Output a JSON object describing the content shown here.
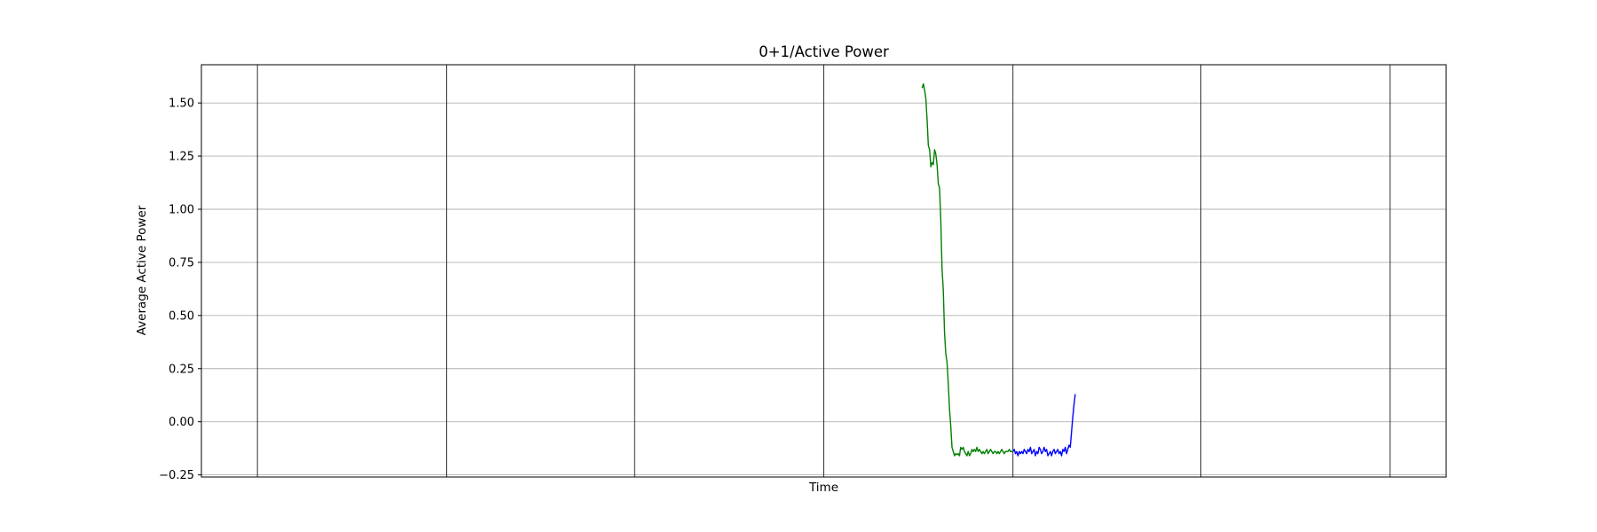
{
  "chart_data": {
    "type": "line",
    "title": "0+1/Active Power",
    "xlabel": "Time",
    "ylabel": "Average Active Power",
    "ylim": [
      -0.26,
      1.68
    ],
    "xlim": [
      0,
      1000
    ],
    "yticks": [
      -0.25,
      0.0,
      0.25,
      0.5,
      0.75,
      1.0,
      1.25,
      1.5
    ],
    "ytick_labels": [
      "−0.25",
      "0.00",
      "0.25",
      "0.50",
      "0.75",
      "1.00",
      "1.25",
      "1.50"
    ],
    "x_gridlines": [
      45,
      197,
      348,
      500,
      652,
      803,
      955
    ],
    "horizontal_grid": true,
    "vertical_grid": true,
    "legend": "none",
    "series": [
      {
        "color": "#008000",
        "x": [
          579,
          580,
          581,
          582,
          583,
          584,
          585,
          586,
          587,
          588,
          589,
          590,
          591,
          592,
          593,
          594,
          595,
          596,
          597,
          598,
          599,
          600,
          601,
          602,
          603,
          604,
          605,
          606,
          607,
          608,
          609,
          610,
          611,
          612,
          613,
          614,
          615,
          616,
          617,
          618,
          619,
          620,
          621,
          622,
          623,
          624,
          625,
          626,
          627,
          628,
          629,
          630,
          631,
          632,
          633,
          634,
          635,
          636,
          637,
          638,
          639,
          640,
          641,
          642,
          643,
          644,
          645,
          646,
          647,
          648,
          649,
          650,
          651,
          652
        ],
        "values": [
          1.57,
          1.59,
          1.56,
          1.52,
          1.42,
          1.3,
          1.28,
          1.2,
          1.22,
          1.21,
          1.28,
          1.26,
          1.21,
          1.12,
          1.1,
          0.95,
          0.72,
          0.62,
          0.42,
          0.32,
          0.28,
          0.18,
          0.06,
          -0.02,
          -0.12,
          -0.14,
          -0.16,
          -0.15,
          -0.155,
          -0.15,
          -0.16,
          -0.12,
          -0.13,
          -0.12,
          -0.14,
          -0.15,
          -0.16,
          -0.14,
          -0.16,
          -0.15,
          -0.13,
          -0.14,
          -0.13,
          -0.14,
          -0.12,
          -0.14,
          -0.13,
          -0.14,
          -0.15,
          -0.14,
          -0.15,
          -0.14,
          -0.13,
          -0.15,
          -0.14,
          -0.13,
          -0.14,
          -0.15,
          -0.14,
          -0.14,
          -0.15,
          -0.14,
          -0.15,
          -0.14,
          -0.13,
          -0.14,
          -0.15,
          -0.14,
          -0.14,
          -0.14,
          -0.13,
          -0.14,
          -0.14,
          -0.14
        ]
      },
      {
        "color": "#0000ff",
        "x": [
          652,
          653,
          654,
          655,
          656,
          657,
          658,
          659,
          660,
          661,
          662,
          663,
          664,
          665,
          666,
          667,
          668,
          669,
          670,
          671,
          672,
          673,
          674,
          675,
          676,
          677,
          678,
          679,
          680,
          681,
          682,
          683,
          684,
          685,
          686,
          687,
          688,
          689,
          690,
          691,
          692,
          693,
          694,
          695,
          696,
          697,
          698,
          699,
          700,
          701,
          702
        ],
        "values": [
          -0.14,
          -0.13,
          -0.15,
          -0.14,
          -0.16,
          -0.14,
          -0.15,
          -0.14,
          -0.15,
          -0.13,
          -0.14,
          -0.15,
          -0.13,
          -0.14,
          -0.12,
          -0.15,
          -0.14,
          -0.13,
          -0.16,
          -0.14,
          -0.15,
          -0.12,
          -0.13,
          -0.15,
          -0.14,
          -0.12,
          -0.14,
          -0.13,
          -0.16,
          -0.15,
          -0.14,
          -0.16,
          -0.14,
          -0.13,
          -0.15,
          -0.14,
          -0.13,
          -0.15,
          -0.14,
          -0.16,
          -0.13,
          -0.14,
          -0.12,
          -0.15,
          -0.13,
          -0.11,
          -0.12,
          -0.05,
          0.02,
          0.08,
          0.13
        ]
      }
    ]
  }
}
